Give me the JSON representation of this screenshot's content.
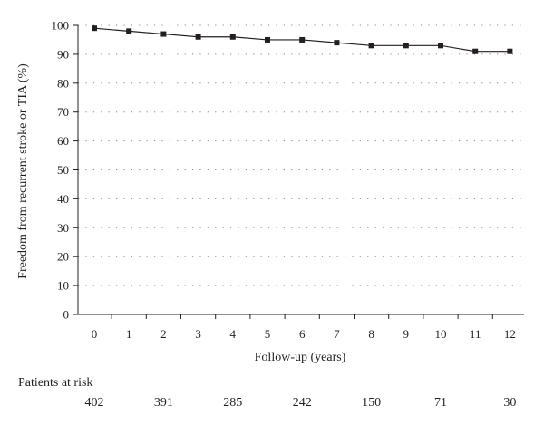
{
  "chart_data": {
    "type": "line",
    "title": "",
    "xlabel": "Follow-up (years)",
    "ylabel": "Freedom from recurrent stroke or TIA (%)",
    "xlim": [
      0,
      12
    ],
    "ylim": [
      0,
      100
    ],
    "xticks": [
      0,
      1,
      2,
      3,
      4,
      5,
      6,
      7,
      8,
      9,
      10,
      11,
      12
    ],
    "yticks": [
      0,
      10,
      20,
      30,
      40,
      50,
      60,
      70,
      80,
      90,
      100
    ],
    "grid": "horizontal dotted",
    "series": [
      {
        "x": [
          0,
          1,
          2,
          3,
          4,
          5,
          6,
          7,
          8,
          9,
          10,
          11,
          12
        ],
        "values": [
          99,
          98,
          97,
          96,
          96,
          95,
          95,
          94,
          93,
          93,
          93,
          91,
          91
        ],
        "marker": "square",
        "color": "#231f20"
      }
    ],
    "risk_table": {
      "title": "Patients at risk",
      "values": [
        "402",
        "391",
        "285",
        "242",
        "150",
        "71",
        "30"
      ]
    }
  }
}
